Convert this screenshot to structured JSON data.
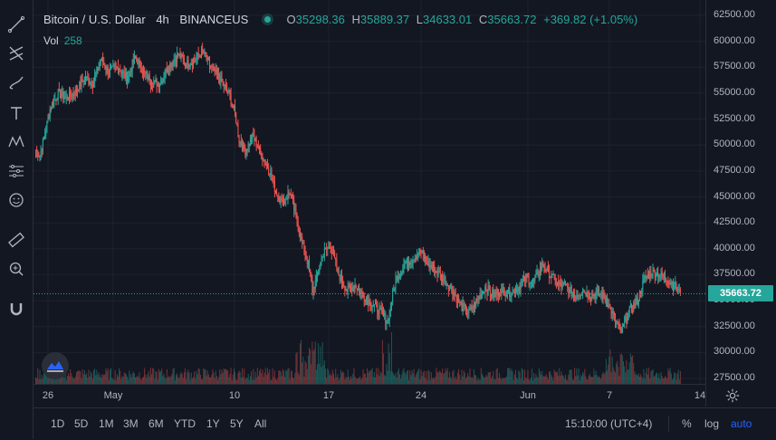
{
  "legend": {
    "symbol": "Bitcoin / U.S. Dollar",
    "interval": "4h",
    "exchange": "BINANCEUS",
    "o_key": "O",
    "o_val": "35298.36",
    "h_key": "H",
    "h_val": "35889.37",
    "l_key": "L",
    "l_val": "34633.01",
    "c_key": "C",
    "c_val": "35663.72",
    "change": "+369.82 (+1.05%)"
  },
  "volume": {
    "label": "Vol",
    "value": "258"
  },
  "price_axis": {
    "labels": [
      "62500.00",
      "60000.00",
      "57500.00",
      "55000.00",
      "52500.00",
      "50000.00",
      "47500.00",
      "45000.00",
      "42500.00",
      "40000.00",
      "37500.00",
      "35000.00",
      "32500.00",
      "30000.00",
      "27500.00"
    ],
    "current_price": "35663.72"
  },
  "time_axis": {
    "labels": [
      "26",
      "May",
      "10",
      "17",
      "24",
      "Jun",
      "7",
      "14"
    ]
  },
  "ranges": [
    "1D",
    "5D",
    "1M",
    "3M",
    "6M",
    "YTD",
    "1Y",
    "5Y",
    "All"
  ],
  "clock": "15:10:00 (UTC+4)",
  "scale": {
    "percent": "%",
    "log": "log",
    "auto": "auto"
  },
  "tools": [
    "crosshair-icon",
    "trendline-icon",
    "fib-icon",
    "brush-icon",
    "text-icon",
    "pattern-icon",
    "forecast-icon",
    "emoji-icon",
    "ruler-icon",
    "zoom-icon",
    "magnet-icon"
  ],
  "colors": {
    "up": "#26a69a",
    "down": "#ef5350",
    "background": "#131722",
    "grid": "#1e222d"
  },
  "chart_data": {
    "type": "candlestick",
    "series_anchors": [
      [
        0,
        49500
      ],
      [
        4,
        49000
      ],
      [
        8,
        50500
      ],
      [
        14,
        53500
      ],
      [
        22,
        55000
      ],
      [
        30,
        54500
      ],
      [
        40,
        55200
      ],
      [
        48,
        56500
      ],
      [
        56,
        56000
      ],
      [
        64,
        58200
      ],
      [
        72,
        57000
      ],
      [
        80,
        57500
      ],
      [
        90,
        56500
      ],
      [
        98,
        58500
      ],
      [
        106,
        57000
      ],
      [
        114,
        56000
      ],
      [
        122,
        56000
      ],
      [
        130,
        57500
      ],
      [
        140,
        58700
      ],
      [
        148,
        57800
      ],
      [
        156,
        58200
      ],
      [
        164,
        59000
      ],
      [
        172,
        57500
      ],
      [
        180,
        56500
      ],
      [
        190,
        55000
      ],
      [
        196,
        53000
      ],
      [
        200,
        50500
      ],
      [
        206,
        49500
      ],
      [
        214,
        50800
      ],
      [
        222,
        49000
      ],
      [
        230,
        47500
      ],
      [
        236,
        45500
      ],
      [
        242,
        44500
      ],
      [
        250,
        45500
      ],
      [
        256,
        43000
      ],
      [
        262,
        40500
      ],
      [
        268,
        38500
      ],
      [
        272,
        36000
      ],
      [
        276,
        37000
      ],
      [
        282,
        39500
      ],
      [
        290,
        40300
      ],
      [
        298,
        37500
      ],
      [
        306,
        36000
      ],
      [
        314,
        36500
      ],
      [
        322,
        35500
      ],
      [
        330,
        34800
      ],
      [
        338,
        34000
      ],
      [
        346,
        33000
      ],
      [
        354,
        37000
      ],
      [
        362,
        38500
      ],
      [
        370,
        39000
      ],
      [
        378,
        39800
      ],
      [
        386,
        38500
      ],
      [
        394,
        37800
      ],
      [
        402,
        37000
      ],
      [
        410,
        36000
      ],
      [
        418,
        34500
      ],
      [
        426,
        33800
      ],
      [
        434,
        35000
      ],
      [
        442,
        36300
      ],
      [
        450,
        35500
      ],
      [
        458,
        36000
      ],
      [
        466,
        35800
      ],
      [
        474,
        36200
      ],
      [
        482,
        37200
      ],
      [
        490,
        36800
      ],
      [
        498,
        38500
      ],
      [
        506,
        37500
      ],
      [
        514,
        36500
      ],
      [
        522,
        36300
      ],
      [
        530,
        35500
      ],
      [
        538,
        36000
      ],
      [
        546,
        35500
      ],
      [
        554,
        35800
      ],
      [
        562,
        35000
      ],
      [
        570,
        33000
      ],
      [
        576,
        32000
      ],
      [
        584,
        34000
      ],
      [
        592,
        35000
      ],
      [
        598,
        37000
      ],
      [
        606,
        37800
      ],
      [
        614,
        37500
      ],
      [
        622,
        37000
      ],
      [
        628,
        36500
      ],
      [
        634,
        35663
      ]
    ],
    "ylim": [
      27500,
      62500
    ],
    "x_labels": [
      "26",
      "May",
      "10",
      "17",
      "24",
      "Jun",
      "7",
      "14"
    ],
    "last_close": 35663.72
  }
}
